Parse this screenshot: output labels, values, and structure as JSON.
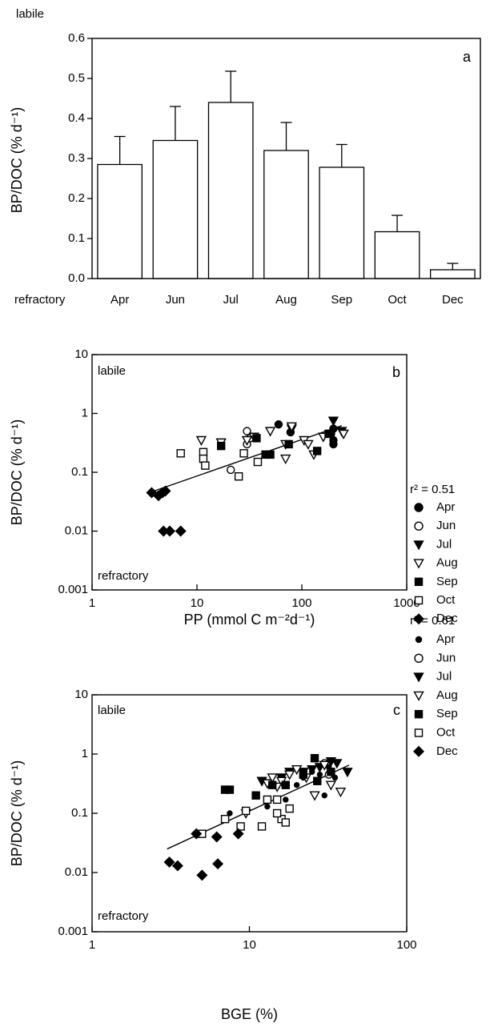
{
  "chart_data": [
    {
      "type": "bar",
      "ylabel": "BP/DOC (% d⁻¹)",
      "panel_label": "a",
      "annotations": [
        "labile",
        "refractory"
      ],
      "categories": [
        "Apr",
        "Jun",
        "Jul",
        "Aug",
        "Sep",
        "Oct",
        "Dec"
      ],
      "values": [
        0.285,
        0.345,
        0.44,
        0.32,
        0.278,
        0.117,
        0.022
      ],
      "errors": [
        0.07,
        0.085,
        0.078,
        0.07,
        0.057,
        0.041,
        0.016
      ],
      "color": "#ffffff",
      "ylim": [
        0,
        0.6
      ],
      "yticks": [
        {
          "value": 0,
          "label": "0.0"
        },
        0.1,
        0.2,
        0.3,
        0.4,
        0.5,
        0.6
      ]
    },
    {
      "type": "scatter",
      "xlabel": "PP (mmol C m⁻²d⁻¹)",
      "ylabel": "BP/DOC (% d⁻¹)",
      "panel_label": "b",
      "annotations": [
        "labile",
        "refractory",
        "r² = 0.51"
      ],
      "log_x": true,
      "log_y": true,
      "xlim": [
        1,
        1000
      ],
      "ylim": [
        0.001,
        10
      ],
      "xticks": [
        1,
        10,
        100,
        1000
      ],
      "yticks": [
        0.001,
        0.01,
        0.1,
        1,
        10
      ],
      "series": [
        {
          "name": "Apr",
          "marker": "circle",
          "filled": true,
          "color": "#000000",
          "x": [
            60,
            78,
            200,
            200,
            200,
            190
          ],
          "y": [
            0.65,
            0.48,
            0.55,
            0.3,
            0.35,
            0.45
          ]
        },
        {
          "name": "Jun",
          "marker": "circle",
          "filled": false,
          "color": "#000000",
          "x": [
            30,
            30,
            32,
            21
          ],
          "y": [
            0.5,
            0.3,
            0.38,
            0.11
          ]
        },
        {
          "name": "Jul",
          "marker": "triangle-down",
          "filled": true,
          "color": "#000000",
          "x": [
            200,
            80,
            190,
            240
          ],
          "y": [
            0.75,
            0.55,
            0.45,
            0.5
          ]
        },
        {
          "name": "Aug",
          "marker": "triangle-down",
          "filled": false,
          "color": "#000000",
          "x": [
            11,
            17,
            35,
            30,
            50,
            70,
            80,
            105,
            115,
            130,
            70,
            250,
            160
          ],
          "y": [
            0.35,
            0.32,
            0.4,
            0.35,
            0.5,
            0.3,
            0.6,
            0.35,
            0.3,
            0.2,
            0.17,
            0.45,
            0.4
          ]
        },
        {
          "name": "Sep",
          "marker": "square",
          "filled": true,
          "color": "#000000",
          "x": [
            17,
            37,
            45,
            50,
            75,
            140,
            180
          ],
          "y": [
            0.28,
            0.38,
            0.2,
            0.2,
            0.3,
            0.23,
            0.45
          ]
        },
        {
          "name": "Oct",
          "marker": "square",
          "filled": false,
          "color": "#000000",
          "x": [
            7,
            11.5,
            11.5,
            12,
            28,
            25,
            38
          ],
          "y": [
            0.21,
            0.22,
            0.17,
            0.13,
            0.21,
            0.085,
            0.15
          ]
        },
        {
          "name": "Dec",
          "marker": "diamond",
          "filled": true,
          "color": "#000000",
          "x": [
            3.7,
            4.3,
            4.7,
            5,
            4.8,
            5.5,
            7
          ],
          "y": [
            0.045,
            0.04,
            0.045,
            0.048,
            0.01,
            0.01,
            0.01
          ]
        }
      ],
      "fit": {
        "x": [
          3.5,
          240
        ],
        "y": [
          0.045,
          0.62
        ]
      }
    },
    {
      "type": "scatter",
      "xlabel": "BGE (%)",
      "ylabel": "BP/DOC (% d⁻¹)",
      "panel_label": "c",
      "annotations": [
        "labile",
        "refractory",
        "r² = 0.61"
      ],
      "log_x": true,
      "log_y": true,
      "xlim": [
        1,
        100
      ],
      "ylim": [
        0.001,
        10
      ],
      "xticks": [
        1,
        10,
        100
      ],
      "yticks": [
        0.001,
        0.01,
        0.1,
        1,
        10
      ],
      "series": [
        {
          "name": "Apr",
          "marker": "small-circle",
          "filled": true,
          "color": "#000000",
          "x": [
            7.5,
            13,
            15,
            17,
            20,
            22,
            25,
            28,
            30,
            32,
            35,
            30,
            18
          ],
          "y": [
            0.1,
            0.13,
            0.28,
            0.17,
            0.3,
            0.4,
            0.5,
            0.45,
            0.7,
            0.6,
            0.4,
            0.2,
            0.12
          ]
        },
        {
          "name": "Jun",
          "marker": "circle",
          "filled": false,
          "color": "#000000",
          "x": [
            30,
            32
          ],
          "y": [
            0.7,
            0.45
          ]
        },
        {
          "name": "Jul",
          "marker": "triangle-down",
          "filled": true,
          "color": "#000000",
          "x": [
            12,
            16,
            18,
            25,
            28,
            33,
            36,
            42,
            22
          ],
          "y": [
            0.35,
            0.4,
            0.5,
            0.55,
            0.6,
            0.75,
            0.7,
            0.5,
            0.5
          ]
        },
        {
          "name": "Aug",
          "marker": "triangle-down",
          "filled": false,
          "color": "#000000",
          "x": [
            9.5,
            13,
            14,
            16,
            18,
            20,
            23,
            26,
            30,
            33,
            38,
            15
          ],
          "y": [
            0.1,
            0.32,
            0.4,
            0.35,
            0.45,
            0.55,
            0.4,
            0.2,
            0.65,
            0.3,
            0.23,
            0.28
          ]
        },
        {
          "name": "Sep",
          "marker": "square",
          "filled": true,
          "color": "#000000",
          "x": [
            7,
            7.5,
            11,
            14,
            17,
            22,
            26,
            27,
            33
          ],
          "y": [
            0.25,
            0.25,
            0.2,
            0.3,
            0.3,
            0.45,
            0.85,
            0.35,
            0.5
          ]
        },
        {
          "name": "Oct",
          "marker": "square",
          "filled": false,
          "color": "#000000",
          "x": [
            5,
            7,
            8.8,
            9.5,
            12,
            13,
            15,
            16,
            17,
            18,
            15
          ],
          "y": [
            0.045,
            0.08,
            0.06,
            0.11,
            0.06,
            0.17,
            0.17,
            0.08,
            0.07,
            0.12,
            0.1
          ]
        },
        {
          "name": "Dec",
          "marker": "diamond",
          "filled": true,
          "color": "#000000",
          "x": [
            3.1,
            3.5,
            4.6,
            5,
            6.2,
            6.3,
            8.5
          ],
          "y": [
            0.015,
            0.013,
            0.045,
            0.009,
            0.04,
            0.014,
            0.045
          ]
        }
      ],
      "fit": {
        "x": [
          3,
          43
        ],
        "y": [
          0.025,
          0.65
        ]
      }
    }
  ]
}
